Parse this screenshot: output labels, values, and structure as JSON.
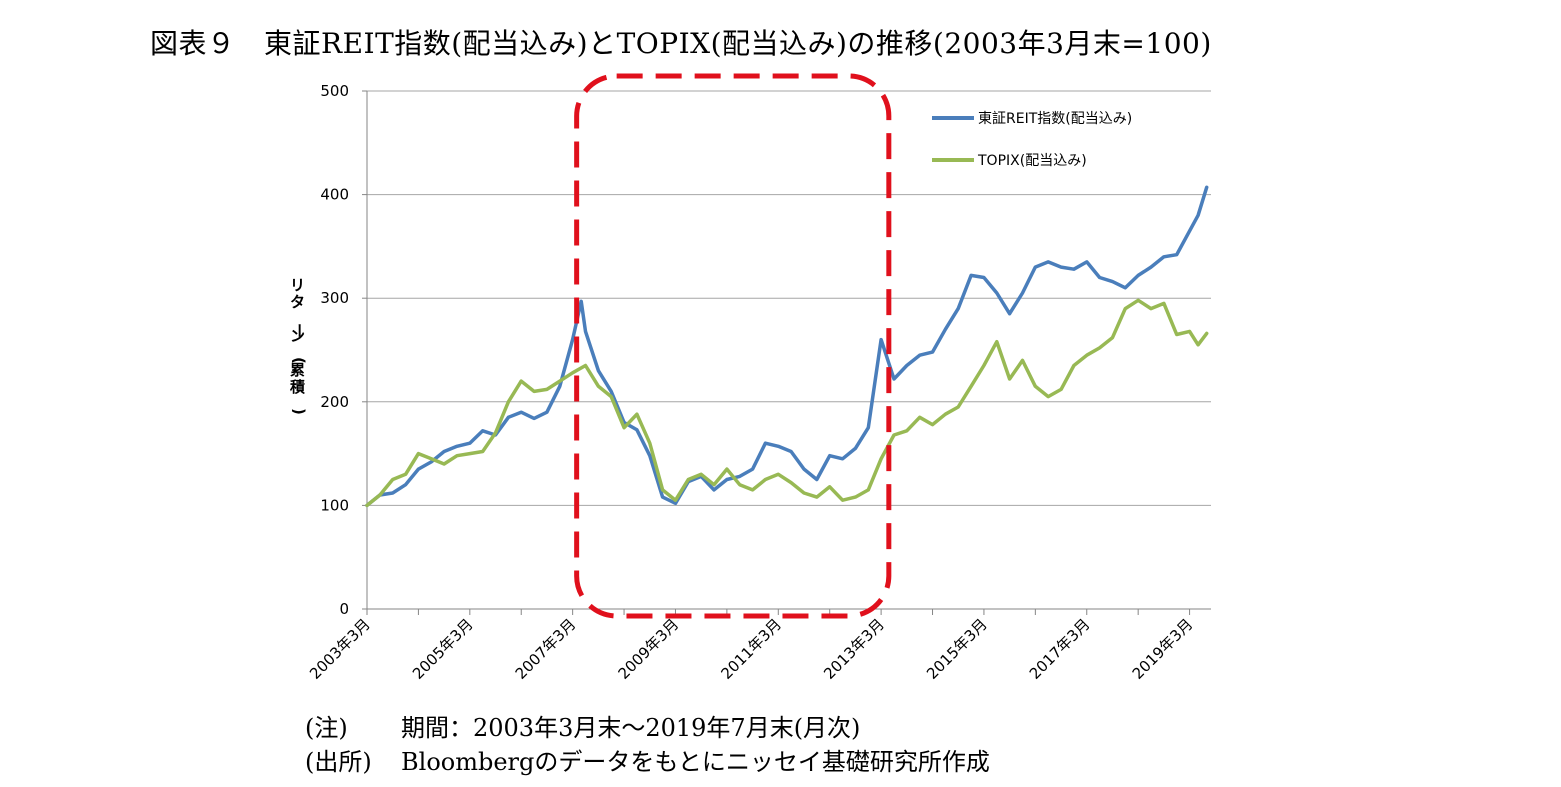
{
  "figure": {
    "title": "図表９　東証REIT指数(配当込み)とTOPIX(配当込み)の推移(2003年3月末=100)"
  },
  "notes": [
    {
      "key": "(注)",
      "text": "期間：2003年3月末～2019年7月末(月次)"
    },
    {
      "key": "(出所)",
      "text": "Bloombergのデータをもとにニッセイ基礎研究所作成"
    }
  ],
  "colors": {
    "reit": "#4a7ebb",
    "topix": "#98b954",
    "highlight_box": "#e0101c",
    "grid": "#a6a6a6",
    "axis": "#868686"
  },
  "chart_data": {
    "type": "line",
    "ylabel": "リターン(累積)",
    "xlabel": "",
    "ylim": [
      0,
      500
    ],
    "yticks": [
      0,
      100,
      200,
      300,
      400,
      500
    ],
    "x_start": "2003-03",
    "x_end": "2019-07",
    "frequency": "monthly",
    "xtick_labels": [
      "2003年3月",
      "2005年3月",
      "2007年3月",
      "2009年3月",
      "2011年3月",
      "2013年3月",
      "2015年3月",
      "2017年3月",
      "2019年3月"
    ],
    "grid": "horizontal",
    "legend_position": "top-right",
    "highlight_region": {
      "from": "2007-03",
      "to": "2013-02",
      "style": "red dashed rounded box"
    },
    "series": [
      {
        "name": "東証REIT指数(配当込み)",
        "points": [
          [
            "2003-03",
            100
          ],
          [
            "2003-06",
            110
          ],
          [
            "2003-09",
            112
          ],
          [
            "2003-12",
            120
          ],
          [
            "2004-03",
            135
          ],
          [
            "2004-06",
            142
          ],
          [
            "2004-09",
            152
          ],
          [
            "2004-12",
            157
          ],
          [
            "2005-03",
            160
          ],
          [
            "2005-06",
            172
          ],
          [
            "2005-09",
            168
          ],
          [
            "2005-12",
            185
          ],
          [
            "2006-03",
            190
          ],
          [
            "2006-06",
            184
          ],
          [
            "2006-09",
            190
          ],
          [
            "2006-12",
            215
          ],
          [
            "2007-03",
            260
          ],
          [
            "2007-05",
            297
          ],
          [
            "2007-06",
            268
          ],
          [
            "2007-09",
            230
          ],
          [
            "2007-12",
            210
          ],
          [
            "2008-03",
            180
          ],
          [
            "2008-06",
            173
          ],
          [
            "2008-09",
            148
          ],
          [
            "2008-12",
            108
          ],
          [
            "2009-03",
            102
          ],
          [
            "2009-06",
            123
          ],
          [
            "2009-09",
            128
          ],
          [
            "2009-12",
            115
          ],
          [
            "2010-03",
            125
          ],
          [
            "2010-06",
            128
          ],
          [
            "2010-09",
            135
          ],
          [
            "2010-12",
            160
          ],
          [
            "2011-03",
            157
          ],
          [
            "2011-06",
            152
          ],
          [
            "2011-09",
            135
          ],
          [
            "2011-12",
            125
          ],
          [
            "2012-03",
            148
          ],
          [
            "2012-06",
            145
          ],
          [
            "2012-09",
            155
          ],
          [
            "2012-12",
            175
          ],
          [
            "2013-03",
            260
          ],
          [
            "2013-06",
            222
          ],
          [
            "2013-09",
            235
          ],
          [
            "2013-12",
            245
          ],
          [
            "2014-03",
            248
          ],
          [
            "2014-06",
            270
          ],
          [
            "2014-09",
            290
          ],
          [
            "2014-12",
            322
          ],
          [
            "2015-03",
            320
          ],
          [
            "2015-06",
            305
          ],
          [
            "2015-09",
            285
          ],
          [
            "2015-12",
            305
          ],
          [
            "2016-03",
            330
          ],
          [
            "2016-06",
            335
          ],
          [
            "2016-09",
            330
          ],
          [
            "2016-12",
            328
          ],
          [
            "2017-03",
            335
          ],
          [
            "2017-06",
            320
          ],
          [
            "2017-09",
            316
          ],
          [
            "2017-12",
            310
          ],
          [
            "2018-03",
            322
          ],
          [
            "2018-06",
            330
          ],
          [
            "2018-09",
            340
          ],
          [
            "2018-12",
            342
          ],
          [
            "2019-03",
            365
          ],
          [
            "2019-05",
            380
          ],
          [
            "2019-07",
            407
          ]
        ]
      },
      {
        "name": "TOPIX(配当込み)",
        "points": [
          [
            "2003-03",
            100
          ],
          [
            "2003-06",
            110
          ],
          [
            "2003-09",
            125
          ],
          [
            "2003-12",
            130
          ],
          [
            "2004-03",
            150
          ],
          [
            "2004-06",
            145
          ],
          [
            "2004-09",
            140
          ],
          [
            "2004-12",
            148
          ],
          [
            "2005-03",
            150
          ],
          [
            "2005-06",
            152
          ],
          [
            "2005-09",
            170
          ],
          [
            "2005-12",
            200
          ],
          [
            "2006-03",
            220
          ],
          [
            "2006-06",
            210
          ],
          [
            "2006-09",
            212
          ],
          [
            "2006-12",
            220
          ],
          [
            "2007-03",
            228
          ],
          [
            "2007-06",
            235
          ],
          [
            "2007-09",
            215
          ],
          [
            "2007-12",
            205
          ],
          [
            "2008-03",
            175
          ],
          [
            "2008-06",
            188
          ],
          [
            "2008-09",
            160
          ],
          [
            "2008-12",
            115
          ],
          [
            "2009-03",
            105
          ],
          [
            "2009-06",
            125
          ],
          [
            "2009-09",
            130
          ],
          [
            "2009-12",
            120
          ],
          [
            "2010-03",
            135
          ],
          [
            "2010-06",
            120
          ],
          [
            "2010-09",
            115
          ],
          [
            "2010-12",
            125
          ],
          [
            "2011-03",
            130
          ],
          [
            "2011-06",
            122
          ],
          [
            "2011-09",
            112
          ],
          [
            "2011-12",
            108
          ],
          [
            "2012-03",
            118
          ],
          [
            "2012-06",
            105
          ],
          [
            "2012-09",
            108
          ],
          [
            "2012-12",
            115
          ],
          [
            "2013-03",
            145
          ],
          [
            "2013-06",
            168
          ],
          [
            "2013-09",
            172
          ],
          [
            "2013-12",
            185
          ],
          [
            "2014-03",
            178
          ],
          [
            "2014-06",
            188
          ],
          [
            "2014-09",
            195
          ],
          [
            "2014-12",
            215
          ],
          [
            "2015-03",
            235
          ],
          [
            "2015-06",
            258
          ],
          [
            "2015-09",
            222
          ],
          [
            "2015-12",
            240
          ],
          [
            "2016-03",
            215
          ],
          [
            "2016-06",
            205
          ],
          [
            "2016-09",
            212
          ],
          [
            "2016-12",
            235
          ],
          [
            "2017-03",
            245
          ],
          [
            "2017-06",
            252
          ],
          [
            "2017-09",
            262
          ],
          [
            "2017-12",
            290
          ],
          [
            "2018-03",
            298
          ],
          [
            "2018-06",
            290
          ],
          [
            "2018-09",
            295
          ],
          [
            "2018-12",
            265
          ],
          [
            "2019-03",
            268
          ],
          [
            "2019-05",
            255
          ],
          [
            "2019-07",
            266
          ]
        ]
      }
    ]
  }
}
